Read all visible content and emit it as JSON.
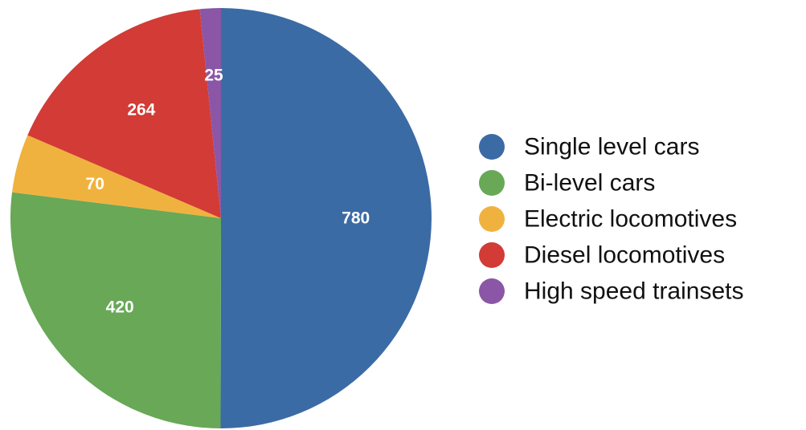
{
  "chart_data": {
    "type": "pie",
    "start_angle_deg": 0,
    "direction": "clockwise",
    "legend_position": "right",
    "slices": [
      {
        "label": "Single level cars",
        "value": 780,
        "display": "780",
        "color": "#3b6ba5"
      },
      {
        "label": "Bi-level cars",
        "value": 420,
        "display": "420",
        "color": "#68a857"
      },
      {
        "label": "Electric locomotives",
        "value": 70,
        "display": "70",
        "color": "#f0b23f"
      },
      {
        "label": "Diesel locomotives",
        "value": 264,
        "display": "264",
        "color": "#d23b36"
      },
      {
        "label": "High speed trainsets",
        "value": 25,
        "display": "25",
        "color": "#8b56a6"
      }
    ]
  }
}
